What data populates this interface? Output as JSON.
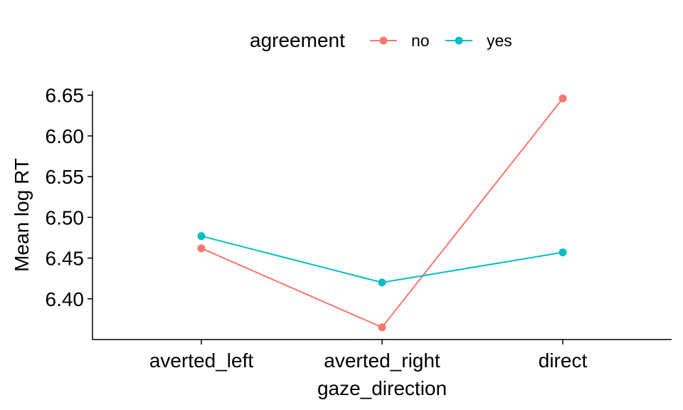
{
  "chart_data": {
    "type": "line",
    "xlabel": "gaze_direction",
    "ylabel": "Mean log RT",
    "categories": [
      "averted_left",
      "averted_right",
      "direct"
    ],
    "ylim": [
      6.35,
      6.655
    ],
    "yticks": [
      "6.40",
      "6.45",
      "6.50",
      "6.55",
      "6.60",
      "6.65"
    ],
    "legend": {
      "title": "agreement",
      "placement": "top"
    },
    "grid": false,
    "series": [
      {
        "name": "no",
        "color": "#F8766D",
        "values": [
          6.462,
          6.365,
          6.646
        ]
      },
      {
        "name": "yes",
        "color": "#00BFC4",
        "values": [
          6.477,
          6.42,
          6.457
        ]
      }
    ]
  }
}
